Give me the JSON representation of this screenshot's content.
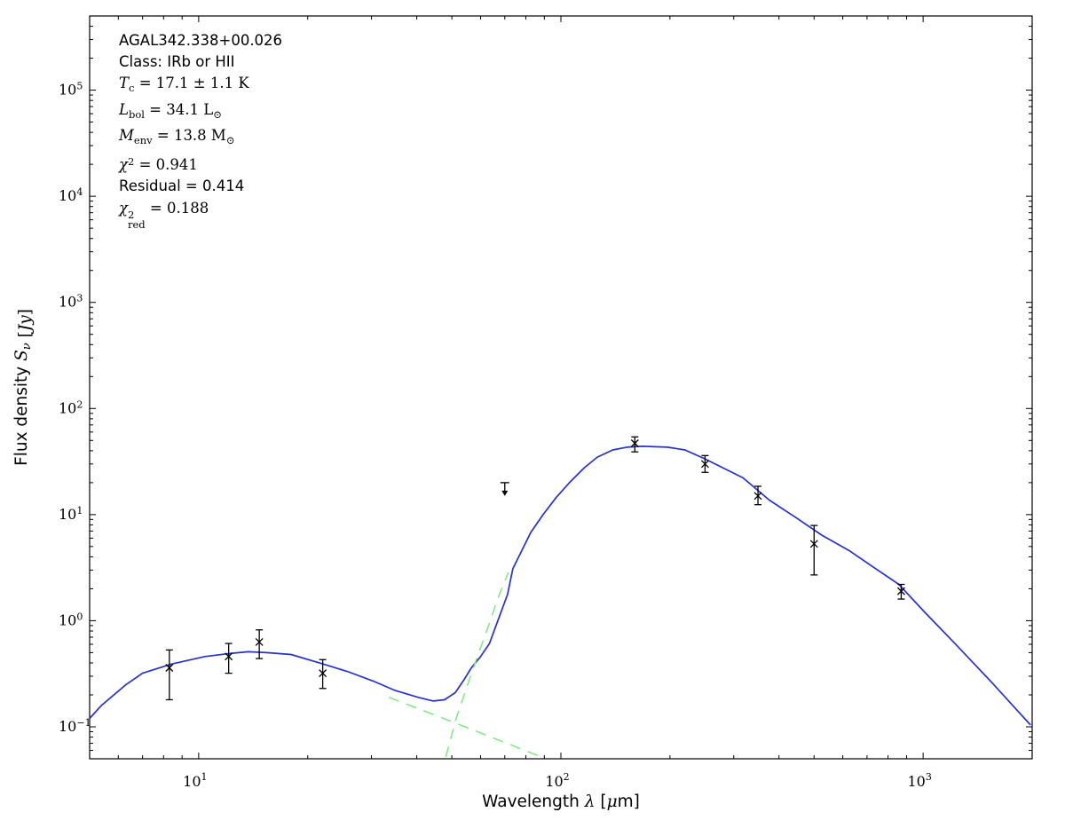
{
  "annotation": {
    "source": "AGAL342.338+00.026",
    "class_line": "Class: IRb or HII",
    "tc": {
      "sym": "T",
      "sub": "c",
      "rest": " = 17.1 ± 1.1 K"
    },
    "lbol": {
      "sym": "L",
      "sub": "bol",
      "rest": " = 34.1 L",
      "unit_sub": "⊙"
    },
    "menv": {
      "sym": "M",
      "sub": "env",
      "rest": " = 13.8 M",
      "unit_sub": "⊙"
    },
    "chi2": {
      "sym": "χ",
      "sup": "2",
      "rest": " = 0.941"
    },
    "residual": "Residual = 0.414",
    "chi2red": {
      "sym": "χ",
      "sup": "2",
      "sub": "red",
      "rest": " = 0.188"
    }
  },
  "chart_data": {
    "type": "line",
    "title": "",
    "xlabel": "Wavelength λ [μm]",
    "ylabel": "Flux density Sν [Jy]",
    "xlabel_parts": [
      {
        "t": "Wavelength ",
        "f": "sans"
      },
      {
        "t": "λ",
        "f": "math"
      },
      {
        "t": " [",
        "f": "sans"
      },
      {
        "t": "μ",
        "f": "math"
      },
      {
        "t": "m]",
        "f": "sans"
      }
    ],
    "ylabel_parts": [
      {
        "t": "Flux density ",
        "f": "sans"
      },
      {
        "t": "S",
        "f": "math"
      },
      {
        "t": "ν",
        "f": "mathsub"
      },
      {
        "t": " [",
        "f": "serif"
      },
      {
        "t": "Jy",
        "f": "math"
      },
      {
        "t": "]",
        "f": "serif"
      }
    ],
    "axes": {
      "xscale": "log",
      "yscale": "log",
      "grid": false,
      "legend": "none"
    },
    "xlim": [
      5,
      2000
    ],
    "ylim": [
      0.05,
      500000
    ],
    "x_major_ticks": [
      {
        "value": 10,
        "mantissa": "10",
        "exponent": "1"
      },
      {
        "value": 100,
        "mantissa": "10",
        "exponent": "2"
      },
      {
        "value": 1000,
        "mantissa": "10",
        "exponent": "3"
      }
    ],
    "y_major_ticks": [
      {
        "value": 100000,
        "mantissa": "10",
        "exponent": "5"
      },
      {
        "value": 10000,
        "mantissa": "10",
        "exponent": "4"
      },
      {
        "value": 1000,
        "mantissa": "10",
        "exponent": "3"
      },
      {
        "value": 100,
        "mantissa": "10",
        "exponent": "2"
      },
      {
        "value": 10,
        "mantissa": "10",
        "exponent": "1"
      },
      {
        "value": 1,
        "mantissa": "10",
        "exponent": "0"
      },
      {
        "value": 0.1,
        "mantissa": "10",
        "exponent": "−1"
      }
    ],
    "colors": {
      "model": "#2531d1",
      "components": "#7de87d",
      "data": "#000000"
    },
    "series": [
      {
        "name": "total-model-fit",
        "style": "solid",
        "color_key": "model",
        "points": [
          [
            5.0,
            0.12
          ],
          [
            5.4,
            0.16
          ],
          [
            6.3,
            0.25
          ],
          [
            7.0,
            0.32
          ],
          [
            8.4,
            0.39
          ],
          [
            10.4,
            0.46
          ],
          [
            12.1,
            0.49
          ],
          [
            13.7,
            0.51
          ],
          [
            15.4,
            0.5
          ],
          [
            18.0,
            0.48
          ],
          [
            22.1,
            0.39
          ],
          [
            25.9,
            0.33
          ],
          [
            30.3,
            0.27
          ],
          [
            34.9,
            0.22
          ],
          [
            40.3,
            0.19
          ],
          [
            44.4,
            0.175
          ],
          [
            47.7,
            0.18
          ],
          [
            51.1,
            0.21
          ],
          [
            54.1,
            0.28
          ],
          [
            56.6,
            0.36
          ],
          [
            60.0,
            0.46
          ],
          [
            63.5,
            0.61
          ],
          [
            67.2,
            1.03
          ],
          [
            71.2,
            1.76
          ],
          [
            73.7,
            3.1
          ],
          [
            82.6,
            6.8
          ],
          [
            89.3,
            10.0
          ],
          [
            97.2,
            14.6
          ],
          [
            106,
            20.3
          ],
          [
            116,
            27.6
          ],
          [
            126,
            34.8
          ],
          [
            139,
            40.7
          ],
          [
            152,
            43.2
          ],
          [
            168,
            44.0
          ],
          [
            197,
            43.2
          ],
          [
            220,
            40.7
          ],
          [
            250,
            33.5
          ],
          [
            280,
            27.6
          ],
          [
            318,
            22.2
          ],
          [
            347,
            17.3
          ],
          [
            376,
            13.7
          ],
          [
            445,
            9.4
          ],
          [
            525,
            6.4
          ],
          [
            624,
            4.6
          ],
          [
            739,
            3.1
          ],
          [
            857,
            2.2
          ],
          [
            1011,
            1.2
          ],
          [
            1235,
            0.59
          ],
          [
            1551,
            0.26
          ],
          [
            1980,
            0.104
          ]
        ]
      },
      {
        "name": "cold-component",
        "style": "dashed",
        "color_key": "components",
        "points": [
          [
            48.1,
            0.052
          ],
          [
            51.4,
            0.12
          ],
          [
            55.5,
            0.26
          ],
          [
            59.2,
            0.49
          ],
          [
            63.5,
            0.95
          ],
          [
            67.2,
            1.67
          ],
          [
            71.6,
            2.86
          ]
        ]
      },
      {
        "name": "warm-component",
        "style": "dashed",
        "color_key": "components",
        "points": [
          [
            33.5,
            0.19
          ],
          [
            54.4,
            0.1
          ],
          [
            88.4,
            0.052
          ]
        ]
      }
    ],
    "data_points": [
      {
        "wavelength": 8.3,
        "flux": 0.36,
        "flux_upper": 0.53,
        "flux_lower": 0.18
      },
      {
        "wavelength": 12.1,
        "flux": 0.46,
        "flux_upper": 0.61,
        "flux_lower": 0.32
      },
      {
        "wavelength": 14.7,
        "flux": 0.63,
        "flux_upper": 0.82,
        "flux_lower": 0.44
      },
      {
        "wavelength": 22.0,
        "flux": 0.32,
        "flux_upper": 0.43,
        "flux_lower": 0.23
      },
      {
        "wavelength": 160,
        "flux": 47,
        "flux_upper": 54,
        "flux_lower": 39
      },
      {
        "wavelength": 250,
        "flux": 30,
        "flux_upper": 36,
        "flux_lower": 25
      },
      {
        "wavelength": 350,
        "flux": 15,
        "flux_upper": 18.5,
        "flux_lower": 12.4
      },
      {
        "wavelength": 500,
        "flux": 5.3,
        "flux_upper": 7.9,
        "flux_lower": 2.7
      },
      {
        "wavelength": 870,
        "flux": 1.9,
        "flux_upper": 2.2,
        "flux_lower": 1.6
      }
    ],
    "upper_limits": [
      {
        "wavelength": 70,
        "flux": 20
      }
    ]
  }
}
